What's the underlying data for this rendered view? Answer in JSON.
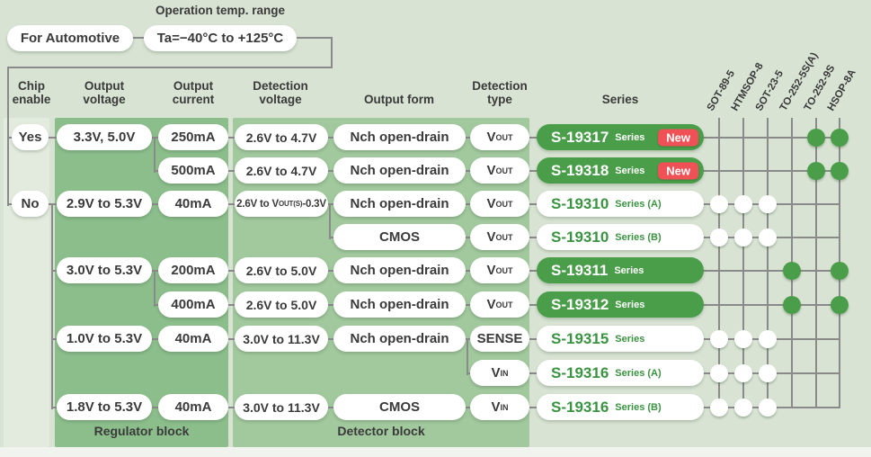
{
  "header": {
    "temp_label": "Operation temp. range",
    "automotive": "For Automotive",
    "temp_range": "Ta=−40°C to +125°C"
  },
  "column_headers": [
    "Chip enable",
    "Output voltage",
    "Output current",
    "Detection voltage",
    "Output form",
    "Detection type",
    "Series"
  ],
  "packages": [
    "SOT-89-5",
    "HTMSOP-8",
    "SOT-23-5",
    "TO-252-5S(A)",
    "TO-252-9S",
    "HSOP-8A"
  ],
  "blocks": {
    "regulator": "Regulator block",
    "detector": "Detector block"
  },
  "colors": {
    "background": "#d8e3d3",
    "chip_strip": "#e3ebdf",
    "regulator_panel": "#8cbe8c",
    "detector_panel": "#a2c89e",
    "series_green": "#4a9e4a",
    "badge_red": "#ef5156",
    "line_gray": "#8a8a8a",
    "text_dark": "#3a3a3a",
    "series_text_green": "#3a9340"
  },
  "rows": [
    {
      "chip": "Yes",
      "voltage": "3.3V, 5.0V",
      "current": "250mA",
      "det_pre": "2.6V to 4.7V",
      "det_sub": "",
      "det_post": "",
      "form": "Nch open-drain",
      "type_main": "V",
      "type_sub": "OUT",
      "series": "S-19317",
      "series_suffix": "Series",
      "badge": "New",
      "style": "green",
      "dots": [
        5,
        6
      ]
    },
    {
      "current": "500mA",
      "det_pre": "2.6V to 4.7V",
      "det_sub": "",
      "det_post": "",
      "form": "Nch open-drain",
      "type_main": "V",
      "type_sub": "OUT",
      "series": "S-19318",
      "series_suffix": "Series",
      "badge": "New",
      "style": "green",
      "dots": [
        5,
        6
      ]
    },
    {
      "chip": "No",
      "voltage": "2.9V to 5.3V",
      "current": "40mA",
      "det_pre": "2.6V to V",
      "det_sub": "OUT(S)",
      "det_post": "-0.3V",
      "form": "Nch open-drain",
      "type_main": "V",
      "type_sub": "OUT",
      "series": "S-19310",
      "series_suffix": "Series (A)",
      "badge": "",
      "style": "white",
      "dots": [
        1,
        2,
        3
      ]
    },
    {
      "form": "CMOS",
      "type_main": "V",
      "type_sub": "OUT",
      "series": "S-19310",
      "series_suffix": "Series (B)",
      "badge": "",
      "style": "white",
      "dots": [
        1,
        2,
        3
      ]
    },
    {
      "voltage": "3.0V to 5.3V",
      "current": "200mA",
      "det_pre": "2.6V to 5.0V",
      "det_sub": "",
      "det_post": "",
      "form": "Nch open-drain",
      "type_main": "V",
      "type_sub": "OUT",
      "series": "S-19311",
      "series_suffix": "Series",
      "badge": "",
      "style": "green",
      "dots": [
        4,
        6
      ]
    },
    {
      "current": "400mA",
      "det_pre": "2.6V to 5.0V",
      "det_sub": "",
      "det_post": "",
      "form": "Nch open-drain",
      "type_main": "V",
      "type_sub": "OUT",
      "series": "S-19312",
      "series_suffix": "Series",
      "badge": "",
      "style": "green",
      "dots": [
        4,
        6
      ]
    },
    {
      "voltage": "1.0V to 5.3V",
      "current": "40mA",
      "det_pre": "3.0V to 11.3V",
      "det_sub": "",
      "det_post": "",
      "form": "Nch open-drain",
      "type_main": "SENSE",
      "type_sub": "",
      "series": "S-19315",
      "series_suffix": "Series",
      "badge": "",
      "style": "white",
      "dots": [
        1,
        2,
        3
      ]
    },
    {
      "type_main": "V",
      "type_sub": "IN",
      "series": "S-19316",
      "series_suffix": "Series (A)",
      "badge": "",
      "style": "white",
      "dots": [
        1,
        2,
        3
      ]
    },
    {
      "voltage": "1.8V to 5.3V",
      "current": "40mA",
      "det_pre": "3.0V to 11.3V",
      "det_sub": "",
      "det_post": "",
      "form": "CMOS",
      "type_main": "V",
      "type_sub": "IN",
      "series": "S-19316",
      "series_suffix": "Series (B)",
      "badge": "",
      "style": "white",
      "dots": [
        1,
        2,
        3
      ]
    }
  ]
}
